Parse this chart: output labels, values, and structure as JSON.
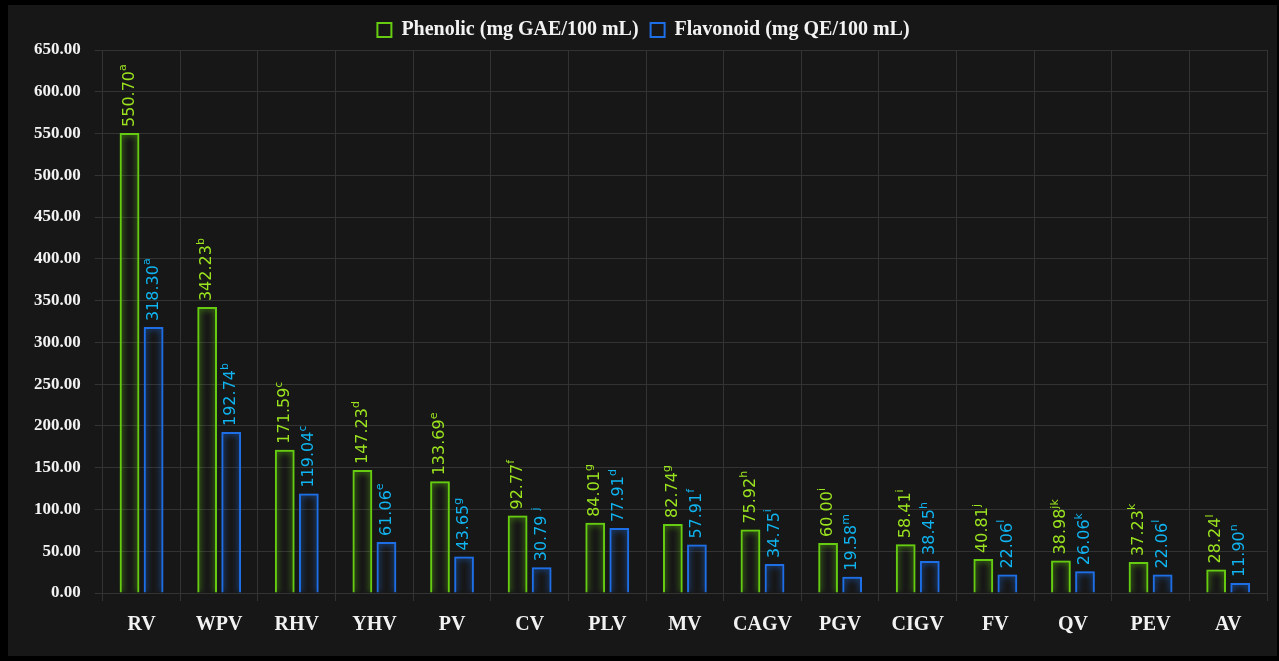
{
  "chart_data": {
    "type": "bar",
    "categories": [
      "RV",
      "WPV",
      "RHV",
      "YHV",
      "PV",
      "CV",
      "PLV",
      "MV",
      "CAGV",
      "PGV",
      "CIGV",
      "FV",
      "QV",
      "PEV",
      "AV"
    ],
    "series": [
      {
        "name": "Phenolic (mg GAE/100 mL)",
        "color": "#66cc11",
        "values": [
          550.7,
          342.23,
          171.59,
          147.23,
          133.69,
          92.77,
          84.01,
          82.74,
          75.92,
          60.0,
          58.41,
          40.81,
          38.98,
          37.23,
          28.24
        ],
        "value_labels": [
          "550.70$^{a}$",
          "342.23$^{b}$",
          "171.59$^{c}$",
          "147.23$^{d}$",
          "133.69$^{e}$",
          "92.77$^{f}$",
          "84.01$^{g}$",
          "82.74$^{g}$",
          "75.92$^{h}$",
          "60.00$^{i}$",
          "58.41$^{i}$",
          "40.81$^{j}$",
          "38.98$^{jk}$",
          "37.23$^{k}$",
          "28.24$^{l}$"
        ]
      },
      {
        "name": "Flavonoid (mg QE/100 mL)",
        "color": "#1e6ee6",
        "values": [
          318.3,
          192.74,
          119.04,
          61.06,
          43.65,
          30.79,
          77.91,
          57.91,
          34.75,
          19.58,
          38.45,
          22.06,
          26.06,
          22.06,
          11.9
        ],
        "value_labels": [
          "318.30$^{a}$",
          "192.74$^{b}$",
          "119.04$^{c}$",
          "61.06$^{e}$",
          "43.65$^{g}$",
          "30.79 $^{j}$",
          "77.91$^{d}$",
          "57.91$^{f}$",
          "34.75$^{i}$",
          "19.58$^{m}$",
          "38.45$^{h}$",
          "22.06$^{l}$",
          "26.06$^{k}$",
          "22.06$^{l}$",
          "11.90$^{n}$"
        ]
      }
    ],
    "ylim": [
      0,
      650
    ],
    "yticks": [
      {
        "value": 0,
        "label": "0.00"
      },
      {
        "value": 50,
        "label": "50.00"
      },
      {
        "value": 100,
        "label": "100.00"
      },
      {
        "value": 150,
        "label": "150.00"
      },
      {
        "value": 200,
        "label": "200.00"
      },
      {
        "value": 250,
        "label": "250.00"
      },
      {
        "value": 300,
        "label": "300.00"
      },
      {
        "value": 350,
        "label": "350.00"
      },
      {
        "value": 400,
        "label": "400.00"
      },
      {
        "value": 450,
        "label": "450.00"
      },
      {
        "value": 500,
        "label": "500.00"
      },
      {
        "value": 550,
        "label": "550.00"
      },
      {
        "value": 600,
        "label": "600.00"
      },
      {
        "value": 650,
        "label": "650.00"
      }
    ],
    "grid": true,
    "legend": "top"
  }
}
